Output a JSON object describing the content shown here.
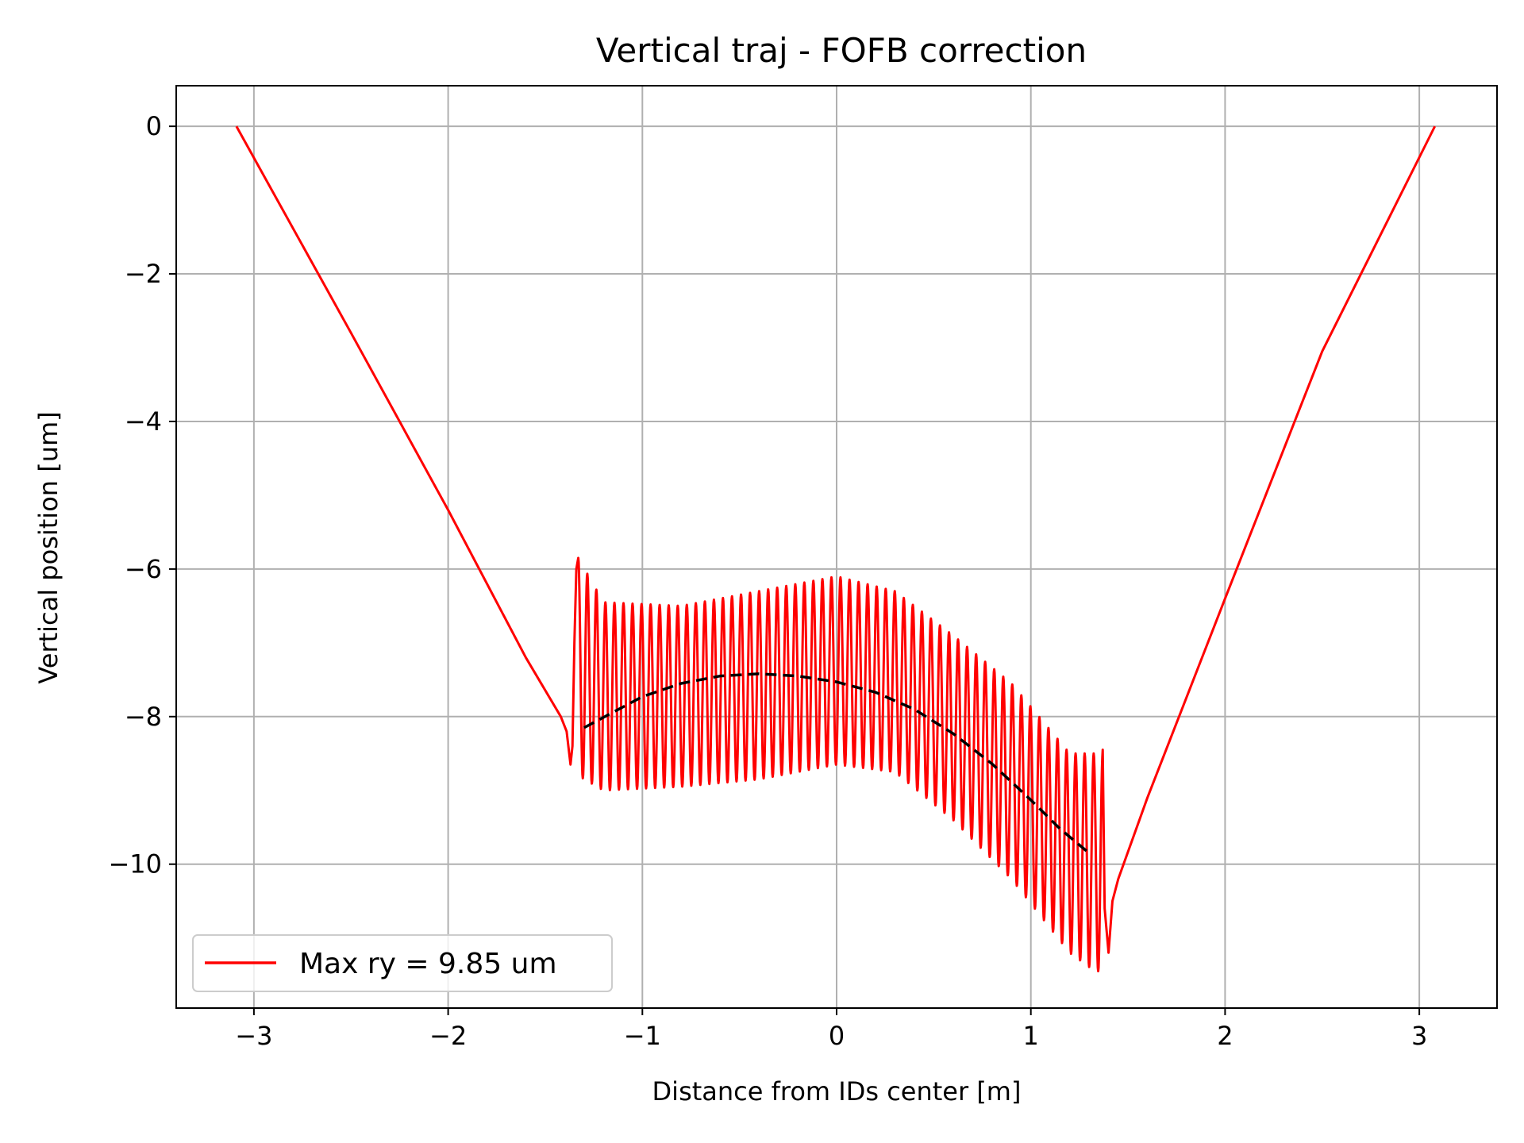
{
  "chart_data": {
    "type": "line",
    "title": "Vertical traj - FOFB correction",
    "xlabel": "Distance from IDs center [m]",
    "ylabel": "Vertical position [um]",
    "xlim": [
      -3.4,
      3.4
    ],
    "ylim": [
      -11.95,
      0.55
    ],
    "xticks": [
      -3,
      -2,
      -1,
      0,
      1,
      2,
      3
    ],
    "xtick_labels": [
      "−3",
      "−2",
      "−1",
      "0",
      "1",
      "2",
      "3"
    ],
    "yticks": [
      0,
      -2,
      -4,
      -6,
      -8,
      -10
    ],
    "ytick_labels": [
      "0",
      "−2",
      "−4",
      "−6",
      "−8",
      "−10"
    ],
    "grid": true,
    "legend": {
      "placement": "lower-left",
      "entries": [
        {
          "label": "Max ry = 9.85 um",
          "color": "#ff0000",
          "style": "solid"
        }
      ]
    },
    "series": [
      {
        "name": "Max ry = 9.85 um",
        "color": "#ff0000",
        "style": "solid",
        "oscillation": {
          "x_start": -1.33,
          "x_end": 1.37,
          "cycles": 58,
          "upper": {
            "x": [
              -1.33,
              -1.2,
              -0.8,
              -0.4,
              0.0,
              0.3,
              0.6,
              0.9,
              1.2,
              1.33
            ],
            "y": [
              -5.85,
              -6.45,
              -6.5,
              -6.3,
              -6.1,
              -6.3,
              -6.9,
              -7.55,
              -8.5,
              -8.5
            ]
          },
          "lower": {
            "x": [
              -1.33,
              -1.2,
              -0.8,
              -0.4,
              0.0,
              0.3,
              0.6,
              0.9,
              1.2,
              1.33
            ],
            "y": [
              -8.8,
              -9.0,
              -8.95,
              -8.85,
              -8.65,
              -8.75,
              -9.4,
              -10.2,
              -11.2,
              -11.45
            ]
          }
        },
        "x": [
          -3.09,
          -2.5,
          -2.0,
          -1.6,
          -1.42,
          -1.39,
          -1.37,
          -1.36,
          -1.35,
          -1.34,
          -1.33,
          1.37,
          1.38,
          1.4,
          1.42,
          1.45,
          1.6,
          2.0,
          2.5,
          3.08
        ],
        "y": [
          0.0,
          -2.8,
          -5.2,
          -7.2,
          -8.0,
          -8.2,
          -8.65,
          -8.4,
          -7.0,
          -6.0,
          -5.85,
          -8.45,
          -10.6,
          -11.2,
          -10.5,
          -10.2,
          -9.1,
          -6.4,
          -3.05,
          0.0
        ]
      },
      {
        "color": "#000000",
        "style": "dashed",
        "x": [
          -1.3,
          -1.0,
          -0.8,
          -0.6,
          -0.4,
          -0.2,
          0.0,
          0.2,
          0.4,
          0.6,
          0.8,
          1.0,
          1.15,
          1.3
        ],
        "y": [
          -8.15,
          -7.73,
          -7.55,
          -7.45,
          -7.42,
          -7.45,
          -7.53,
          -7.67,
          -7.9,
          -8.23,
          -8.64,
          -9.13,
          -9.52,
          -9.85
        ]
      }
    ]
  }
}
